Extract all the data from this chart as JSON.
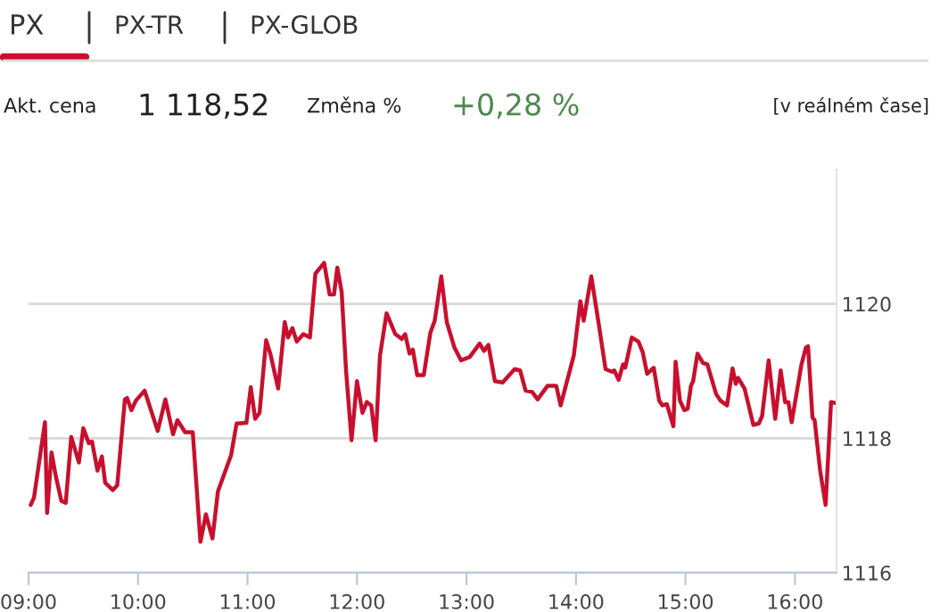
{
  "chart_data": {
    "type": "line",
    "annotations": [
      "PX",
      "PX-TR",
      "PX-GLOB",
      "Akt. cena",
      "1 118,52",
      "Změna %",
      "+0,28 %",
      "[v reálném čase]"
    ],
    "x": [
      9.02,
      9.05,
      9.15,
      9.17,
      9.21,
      9.25,
      9.3,
      9.34,
      9.39,
      9.46,
      9.5,
      9.55,
      9.58,
      9.63,
      9.67,
      9.7,
      9.77,
      9.81,
      9.88,
      9.9,
      9.94,
      9.98,
      10.06,
      10.18,
      10.25,
      10.32,
      10.36,
      10.43,
      10.5,
      10.57,
      10.62,
      10.68,
      10.73,
      10.85,
      10.9,
      10.99,
      11.03,
      11.07,
      11.11,
      11.17,
      11.21,
      11.28,
      11.34,
      11.37,
      11.41,
      11.45,
      11.51,
      11.57,
      11.62,
      11.7,
      11.75,
      11.79,
      11.82,
      11.86,
      11.9,
      11.95,
      12.0,
      12.05,
      12.09,
      12.13,
      12.17,
      12.21,
      12.27,
      12.35,
      12.41,
      12.44,
      12.48,
      12.51,
      12.55,
      12.61,
      12.67,
      12.71,
      12.77,
      12.82,
      12.89,
      12.95,
      13.03,
      13.12,
      13.16,
      13.2,
      13.26,
      13.33,
      13.44,
      13.49,
      13.54,
      13.6,
      13.65,
      13.74,
      13.82,
      13.86,
      13.98,
      14.04,
      14.07,
      14.14,
      14.21,
      14.27,
      14.33,
      14.35,
      14.39,
      14.43,
      14.45,
      14.51,
      14.57,
      14.61,
      14.65,
      14.71,
      14.76,
      14.79,
      14.83,
      14.89,
      14.91,
      14.95,
      14.99,
      15.02,
      15.05,
      15.07,
      15.11,
      15.16,
      15.2,
      15.28,
      15.32,
      15.38,
      15.43,
      15.46,
      15.48,
      15.54,
      15.62,
      15.67,
      15.7,
      15.76,
      15.82,
      15.87,
      15.91,
      15.94,
      15.97,
      16.06,
      16.1,
      16.12,
      16.16,
      16.18,
      16.23,
      16.28,
      16.33,
      16.38
    ],
    "series": [
      {
        "color": "#c8102e",
        "values": [
          1117.01,
          1117.12,
          1118.24,
          1116.89,
          1117.79,
          1117.43,
          1117.07,
          1117.04,
          1118.02,
          1117.64,
          1118.15,
          1117.93,
          1117.95,
          1117.52,
          1117.73,
          1117.34,
          1117.23,
          1117.3,
          1118.58,
          1118.6,
          1118.42,
          1118.56,
          1118.71,
          1118.11,
          1118.58,
          1118.06,
          1118.27,
          1118.09,
          1118.09,
          1116.46,
          1116.87,
          1116.51,
          1117.21,
          1117.75,
          1118.22,
          1118.23,
          1118.76,
          1118.29,
          1118.38,
          1119.46,
          1119.25,
          1118.74,
          1119.73,
          1119.5,
          1119.64,
          1119.44,
          1119.55,
          1119.5,
          1120.45,
          1120.61,
          1120.14,
          1120.14,
          1120.54,
          1120.18,
          1119.01,
          1117.97,
          1118.85,
          1118.38,
          1118.54,
          1118.49,
          1117.97,
          1119.23,
          1119.86,
          1119.55,
          1119.48,
          1119.55,
          1119.26,
          1119.32,
          1118.94,
          1118.94,
          1119.57,
          1119.75,
          1120.41,
          1119.73,
          1119.35,
          1119.16,
          1119.21,
          1119.41,
          1119.3,
          1119.39,
          1118.85,
          1118.83,
          1119.03,
          1119.01,
          1118.71,
          1118.69,
          1118.58,
          1118.78,
          1118.78,
          1118.49,
          1119.23,
          1120.04,
          1119.75,
          1120.41,
          1119.68,
          1119.03,
          1118.99,
          1119.01,
          1118.87,
          1119.1,
          1119.05,
          1119.5,
          1119.44,
          1119.28,
          1118.96,
          1119.05,
          1118.56,
          1118.49,
          1118.51,
          1118.18,
          1119.14,
          1118.56,
          1118.42,
          1118.44,
          1118.78,
          1118.85,
          1119.26,
          1119.12,
          1119.1,
          1118.66,
          1118.56,
          1118.49,
          1119.04,
          1118.81,
          1118.9,
          1118.74,
          1118.2,
          1118.22,
          1118.33,
          1119.16,
          1118.29,
          1119.01,
          1118.54,
          1118.54,
          1118.24,
          1119.1,
          1119.35,
          1119.37,
          1118.31,
          1118.27,
          1117.52,
          1117.01,
          1118.54,
          1118.52
        ]
      }
    ],
    "xlim": [
      9.0,
      16.38
    ],
    "ylim": [
      1116,
      1122
    ],
    "xticks": [
      {
        "value": 9,
        "label": "09:00"
      },
      {
        "value": 10,
        "label": "10:00"
      },
      {
        "value": 11,
        "label": "11:00"
      },
      {
        "value": 12,
        "label": "12:00"
      },
      {
        "value": 13,
        "label": "13:00"
      },
      {
        "value": 14,
        "label": "14:00"
      },
      {
        "value": 15,
        "label": "15:00"
      },
      {
        "value": 16,
        "label": "16:00"
      }
    ],
    "yticks": [
      1116,
      1118,
      1120
    ],
    "grid": "y",
    "marker": "none",
    "line_style": "solid"
  }
}
